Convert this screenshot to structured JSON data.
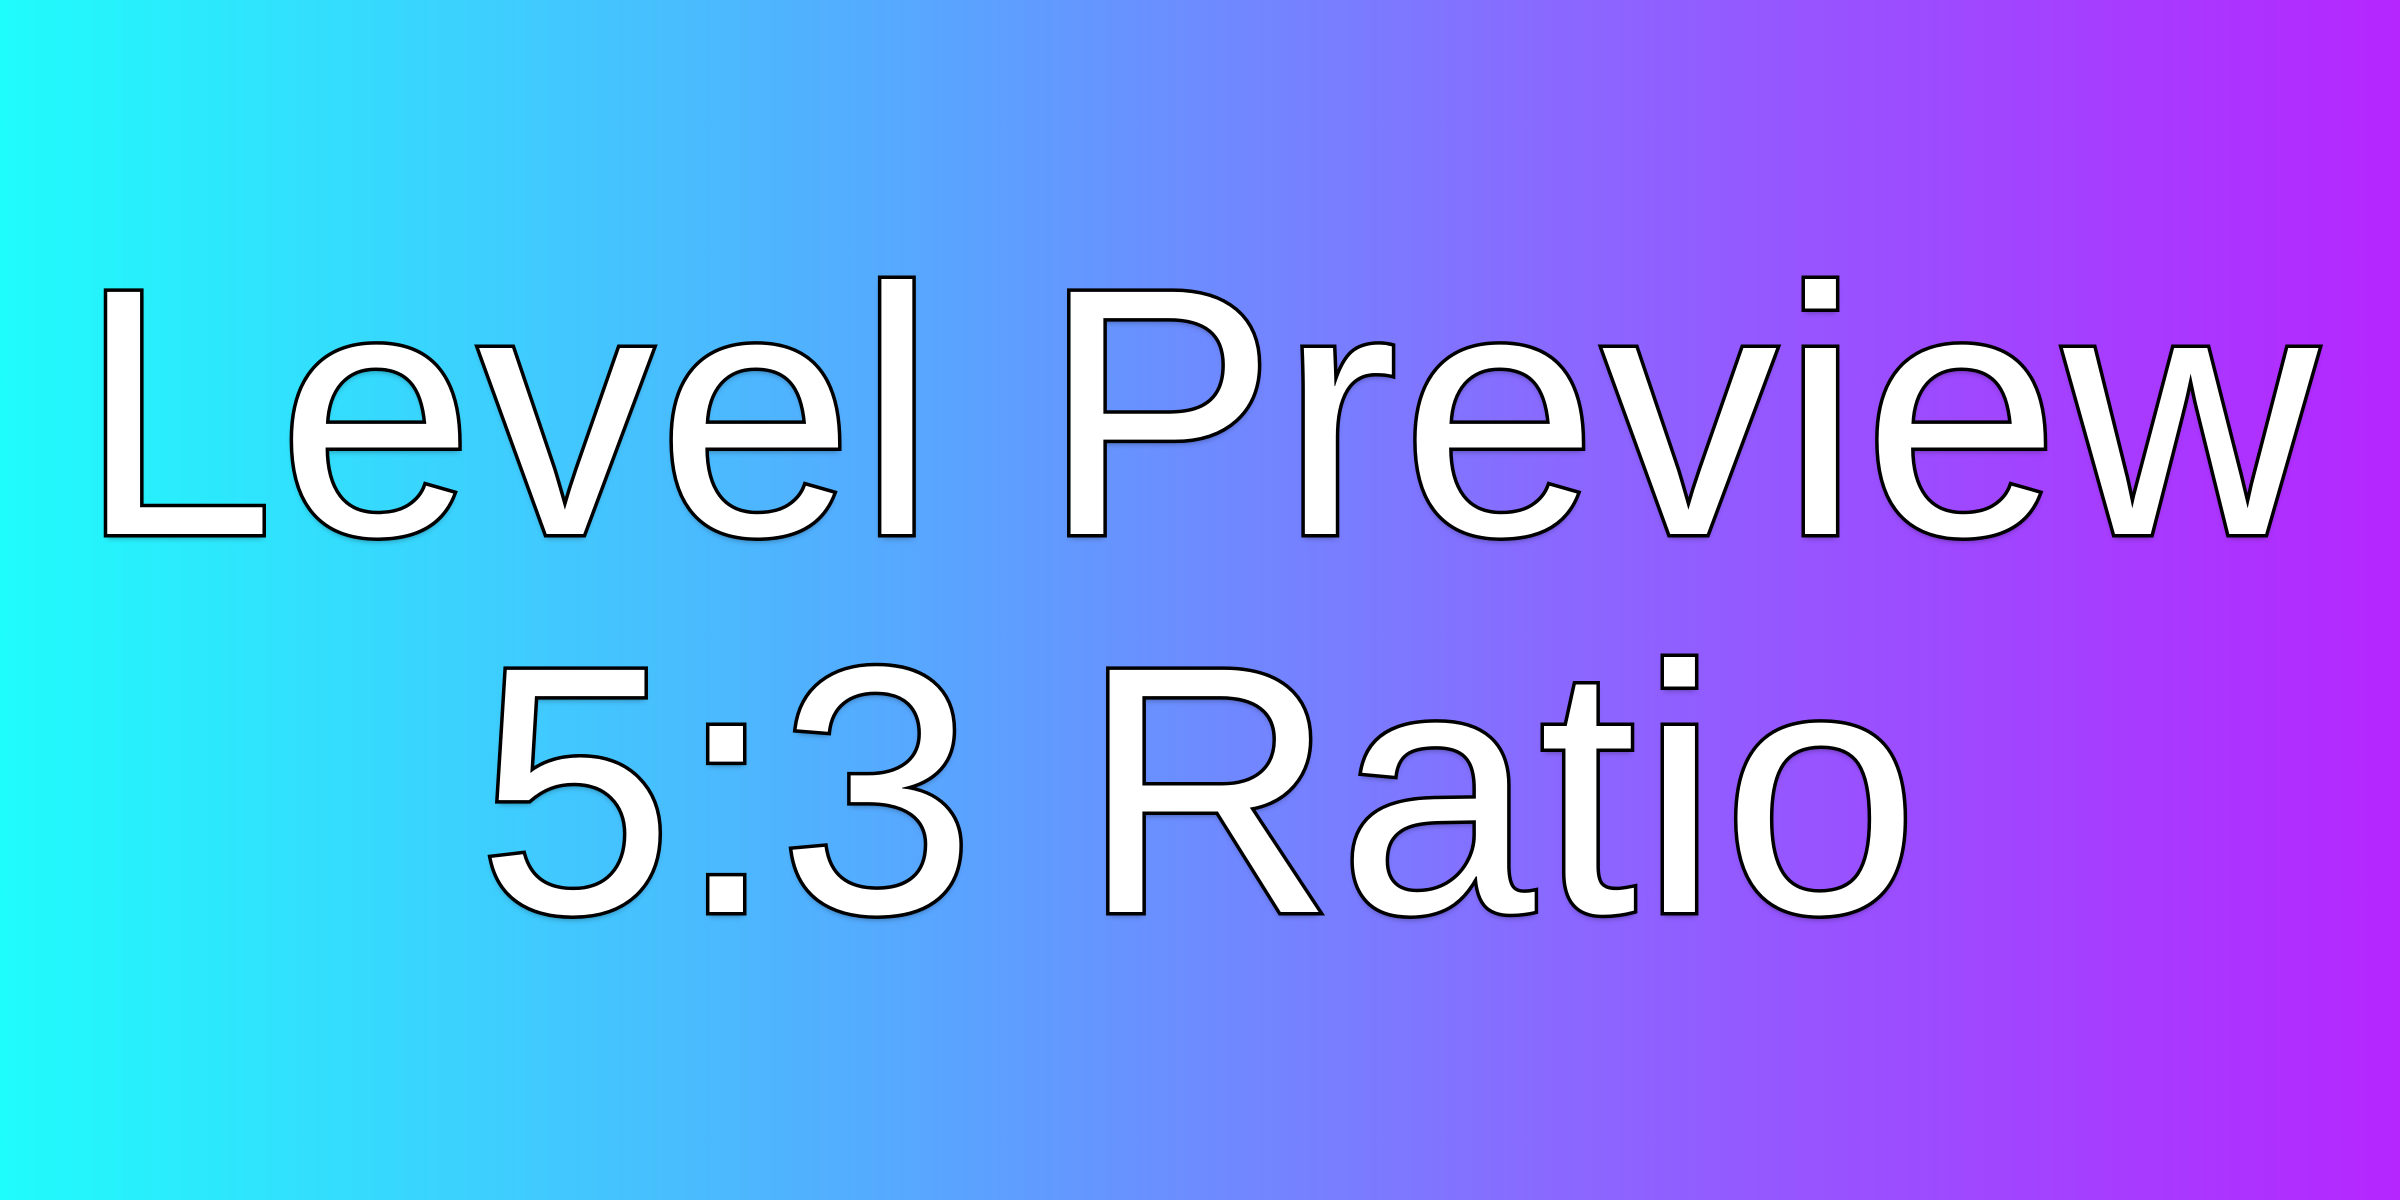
{
  "title": {
    "line1": "Level Preview",
    "line2": "5:3 Ratio"
  },
  "colors": {
    "gradient_left": "#1ffcfc",
    "gradient_mid": "#8a68ff",
    "gradient_right": "#b526ff",
    "text_fill": "#ffffff",
    "text_outline": "#000000"
  }
}
